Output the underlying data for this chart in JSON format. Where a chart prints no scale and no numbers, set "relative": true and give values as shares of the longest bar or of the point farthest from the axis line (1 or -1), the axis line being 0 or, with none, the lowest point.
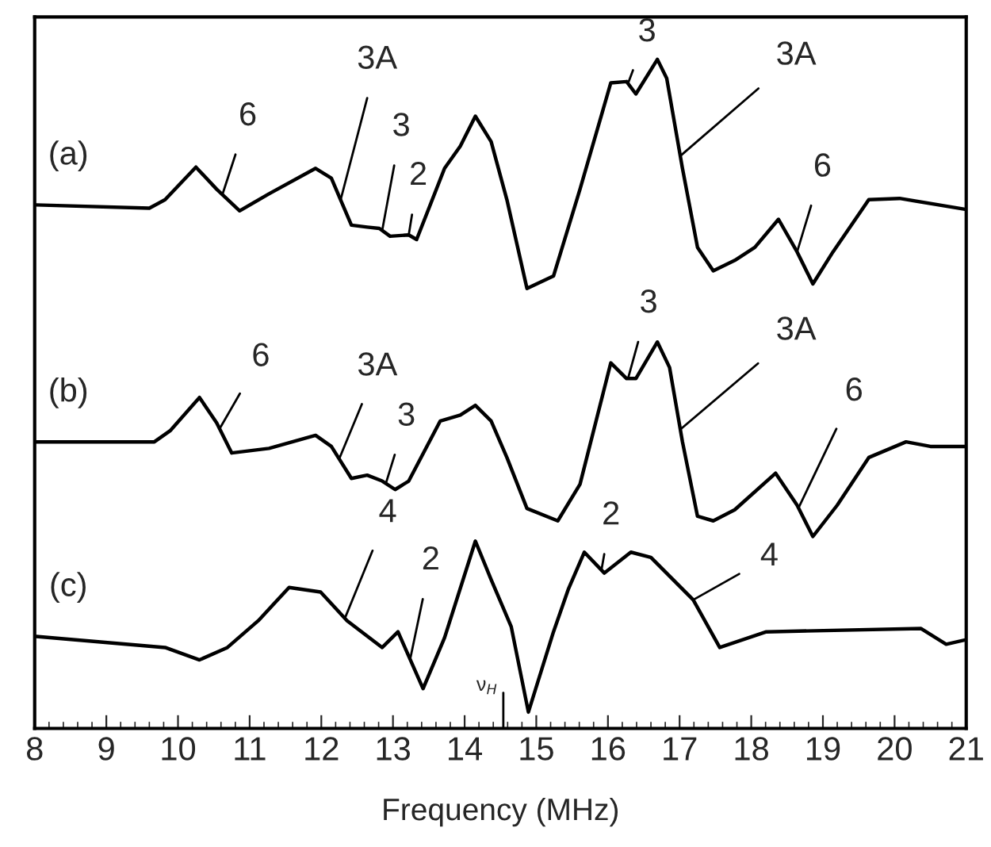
{
  "chart_data": {
    "type": "line",
    "relative": true,
    "xlabel": "Frequency (MHz)",
    "xlim": [
      8,
      21
    ],
    "xticks": [
      8,
      9,
      10,
      11,
      12,
      13,
      14,
      15,
      16,
      17,
      18,
      19,
      20,
      21
    ],
    "tick_labels": "x",
    "grid": false,
    "legend": false,
    "marker": "none",
    "line_style": "solid",
    "series": [
      {
        "name": "(a)",
        "color": "#000000",
        "x": [
          8.02,
          9.6,
          9.82,
          10.25,
          10.54,
          10.86,
          11.27,
          11.92,
          12.14,
          12.42,
          12.64,
          12.81,
          12.96,
          13.22,
          13.33,
          13.72,
          13.94,
          14.15,
          14.37,
          14.59,
          14.87,
          15.24,
          15.61,
          16.04,
          16.26,
          16.39,
          16.69,
          16.82,
          17.04,
          17.25,
          17.47,
          17.77,
          18.05,
          18.38,
          18.64,
          18.86,
          19.14,
          19.64,
          20.07,
          21.0
        ],
        "values": [
          0.777,
          0.772,
          0.785,
          0.835,
          0.801,
          0.768,
          0.794,
          0.833,
          0.818,
          0.746,
          0.743,
          0.741,
          0.729,
          0.731,
          0.724,
          0.833,
          0.867,
          0.913,
          0.874,
          0.785,
          0.649,
          0.668,
          0.801,
          0.964,
          0.966,
          0.947,
          1.0,
          0.971,
          0.833,
          0.712,
          0.676,
          0.692,
          0.712,
          0.755,
          0.705,
          0.656,
          0.705,
          0.785,
          0.787,
          0.77
        ]
      },
      {
        "name": "(b)",
        "color": "#000000",
        "x": [
          8.02,
          9.67,
          9.89,
          10.3,
          10.54,
          10.75,
          11.27,
          11.92,
          12.14,
          12.42,
          12.64,
          12.85,
          13.03,
          13.22,
          13.66,
          13.94,
          14.15,
          14.37,
          14.59,
          14.87,
          15.3,
          15.61,
          16.04,
          16.26,
          16.39,
          16.69,
          16.86,
          17.04,
          17.25,
          17.47,
          17.77,
          18.34,
          18.64,
          18.86,
          19.2,
          19.64,
          20.16,
          20.5,
          21.0
        ],
        "values": [
          0.414,
          0.414,
          0.431,
          0.482,
          0.443,
          0.397,
          0.404,
          0.424,
          0.407,
          0.358,
          0.363,
          0.354,
          0.341,
          0.354,
          0.446,
          0.455,
          0.47,
          0.446,
          0.39,
          0.312,
          0.293,
          0.349,
          0.535,
          0.511,
          0.511,
          0.567,
          0.528,
          0.414,
          0.3,
          0.293,
          0.31,
          0.366,
          0.317,
          0.269,
          0.317,
          0.39,
          0.414,
          0.407,
          0.407
        ]
      },
      {
        "name": "(c)",
        "color": "#000000",
        "x": [
          8.02,
          9.82,
          10.3,
          10.69,
          11.12,
          11.55,
          11.99,
          12.36,
          12.85,
          13.07,
          13.42,
          13.72,
          14.15,
          14.37,
          14.65,
          14.89,
          15.24,
          15.45,
          15.67,
          15.95,
          16.32,
          16.6,
          17.19,
          17.56,
          18.21,
          20.37,
          20.72,
          21.0
        ],
        "values": [
          0.116,
          0.099,
          0.08,
          0.099,
          0.14,
          0.191,
          0.184,
          0.14,
          0.099,
          0.123,
          0.036,
          0.114,
          0.262,
          0.203,
          0.131,
          0.0,
          0.123,
          0.189,
          0.245,
          0.213,
          0.245,
          0.237,
          0.172,
          0.099,
          0.123,
          0.128,
          0.104,
          0.111
        ]
      }
    ],
    "ref_lines": [
      {
        "axis": "x",
        "value": 14.54,
        "label": "ν$_{H}$"
      }
    ],
    "annotations": [
      {
        "text": "6",
        "x": 10.62,
        "y": 0.793
      },
      {
        "text": "3A",
        "x": 12.27,
        "y": 0.785
      },
      {
        "text": "3",
        "x": 12.85,
        "y": 0.738
      },
      {
        "text": "2",
        "x": 13.22,
        "y": 0.731
      },
      {
        "text": "3",
        "x": 16.28,
        "y": 0.963
      },
      {
        "text": "3A",
        "x": 17.01,
        "y": 0.852
      },
      {
        "text": "6",
        "x": 18.64,
        "y": 0.705
      },
      {
        "text": "6",
        "x": 10.58,
        "y": 0.434
      },
      {
        "text": "3A",
        "x": 12.25,
        "y": 0.388
      },
      {
        "text": "3",
        "x": 12.9,
        "y": 0.35
      },
      {
        "text": "3",
        "x": 16.28,
        "y": 0.511
      },
      {
        "text": "3A",
        "x": 17.01,
        "y": 0.433
      },
      {
        "text": "6",
        "x": 18.66,
        "y": 0.313
      },
      {
        "text": "4",
        "x": 12.33,
        "y": 0.144
      },
      {
        "text": "2",
        "x": 13.24,
        "y": 0.081
      },
      {
        "text": "2",
        "x": 15.91,
        "y": 0.218
      },
      {
        "text": "4",
        "x": 17.19,
        "y": 0.172
      }
    ]
  }
}
